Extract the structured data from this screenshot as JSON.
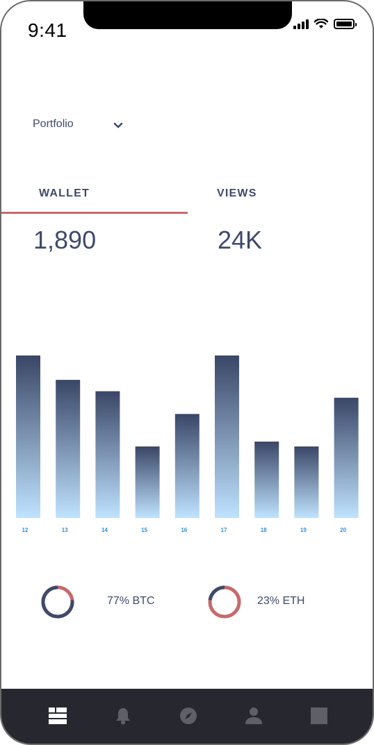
{
  "status_bar": {
    "time": "9:41"
  },
  "portfolio_select": {
    "label": "Portfolio",
    "icon": "chevron-down-icon"
  },
  "tabs": [
    {
      "label": "WALLET",
      "value": "1,890",
      "active": true
    },
    {
      "label": "VIEWS",
      "value": "24K",
      "active": false
    }
  ],
  "chart_data": {
    "type": "bar",
    "categories": [
      "12",
      "13",
      "14",
      "15",
      "16",
      "17",
      "18",
      "19",
      "20"
    ],
    "values": [
      100,
      85,
      78,
      44,
      64,
      100,
      47,
      44,
      74
    ],
    "ylim": [
      0,
      100
    ],
    "grid": false,
    "colors": {
      "bar_top": "#3a4666",
      "bar_bottom": "#bfe3ff",
      "tick_label": "#2f8ee0"
    }
  },
  "allocations": [
    {
      "label": "77% BTC",
      "percent": 77,
      "asset": "BTC"
    },
    {
      "label": "23% ETH",
      "percent": 23,
      "asset": "ETH"
    }
  ],
  "colors": {
    "primary": "#3e4a6a",
    "accent": "#c76a6a",
    "tabbar_bg": "#27272f",
    "tabbar_icon_active": "#ffffff",
    "tabbar_icon": "#5f5f66"
  },
  "bottom_nav": [
    {
      "icon": "dashboard-icon",
      "active": true
    },
    {
      "icon": "bell-icon",
      "active": false
    },
    {
      "icon": "compass-icon",
      "active": false
    },
    {
      "icon": "person-icon",
      "active": false
    },
    {
      "icon": "square-icon",
      "active": false
    }
  ]
}
